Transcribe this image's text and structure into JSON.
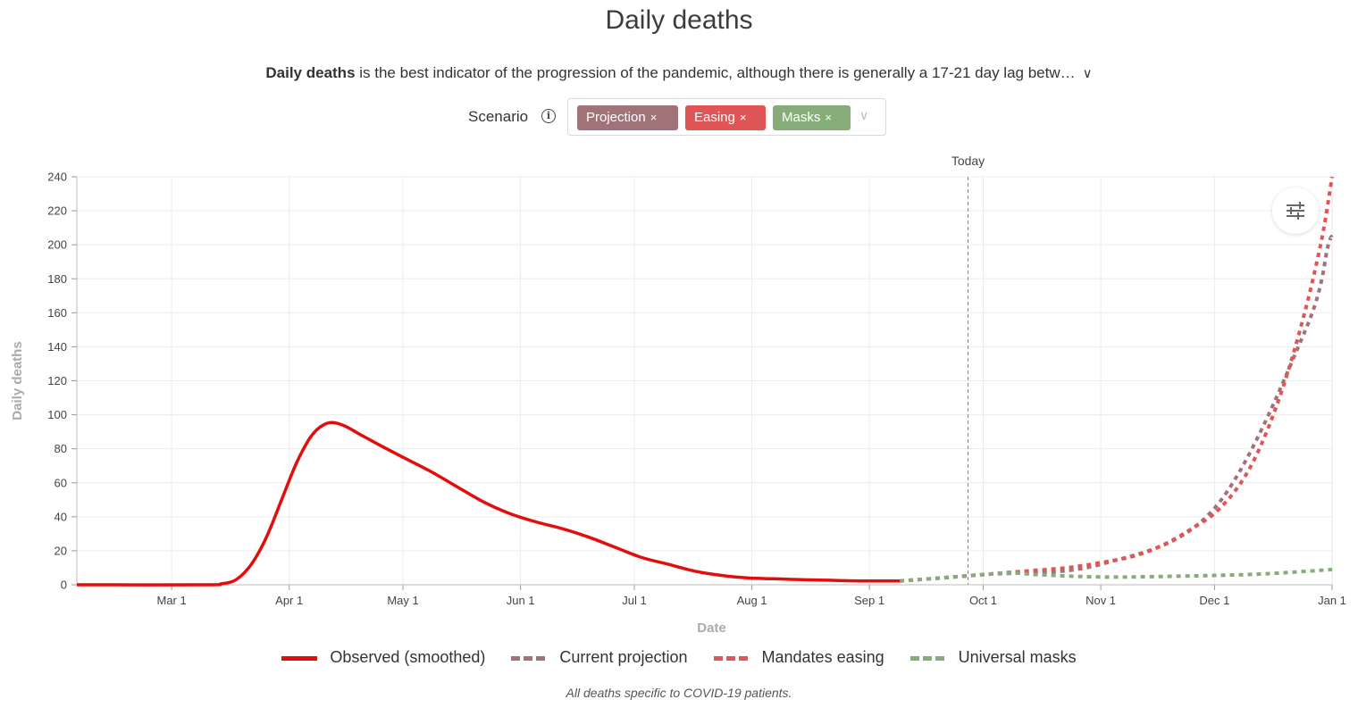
{
  "title": "Daily deaths",
  "description": {
    "bold": "Daily deaths",
    "rest": " is the best indicator of the progression of the pandemic, although there is generally a 17-21 day lag betw…",
    "expand_icon": "chevron-down-icon"
  },
  "scenario": {
    "label": "Scenario",
    "info_icon": "info-icon",
    "tags": [
      {
        "label": "Projection",
        "color": "#a07378"
      },
      {
        "label": "Easing",
        "color": "#e05555"
      },
      {
        "label": "Masks",
        "color": "#86ac79"
      }
    ],
    "remove_glyph": "×",
    "dropdown_icon": "chevron-down-icon"
  },
  "settings_icon": "sliders-icon",
  "legend": [
    {
      "label": "Observed (smoothed)",
      "style": "solid",
      "color": "#e30d0d"
    },
    {
      "label": "Current projection",
      "style": "dashed",
      "color": "#a07378"
    },
    {
      "label": "Mandates easing",
      "style": "dashed",
      "color": "#e05555"
    },
    {
      "label": "Universal masks",
      "style": "dashed",
      "color": "#86ac79"
    }
  ],
  "footnote": "All deaths specific to COVID-19 patients.",
  "chart_data": {
    "type": "line",
    "xlabel": "Date",
    "ylabel": "Daily deaths",
    "x_ticks": [
      "Mar 1",
      "Apr 1",
      "May 1",
      "Jun 1",
      "Jul 1",
      "Aug 1",
      "Sep 1",
      "Oct 1",
      "Nov 1",
      "Dec 1",
      "Jan 1"
    ],
    "x_tick_dates": [
      "2020-03-01",
      "2020-04-01",
      "2020-05-01",
      "2020-06-01",
      "2020-07-01",
      "2020-08-01",
      "2020-09-01",
      "2020-10-01",
      "2020-11-01",
      "2020-12-01",
      "2021-01-01"
    ],
    "xlim": [
      "2020-02-05",
      "2021-01-01"
    ],
    "ylim": [
      0,
      240
    ],
    "y_ticks": [
      0,
      20,
      40,
      60,
      80,
      100,
      120,
      140,
      160,
      180,
      200,
      220,
      240
    ],
    "grid": true,
    "today": {
      "label": "Today",
      "date": "2020-09-27"
    },
    "series": [
      {
        "name": "Observed (smoothed)",
        "style": "solid",
        "color": "#e30d0d",
        "points": [
          [
            "2020-02-05",
            0
          ],
          [
            "2020-03-10",
            0
          ],
          [
            "2020-03-14",
            0.5
          ],
          [
            "2020-03-18",
            3
          ],
          [
            "2020-03-22",
            12
          ],
          [
            "2020-03-26",
            28
          ],
          [
            "2020-03-30",
            50
          ],
          [
            "2020-04-03",
            72
          ],
          [
            "2020-04-07",
            88
          ],
          [
            "2020-04-11",
            95
          ],
          [
            "2020-04-15",
            94
          ],
          [
            "2020-04-20",
            88
          ],
          [
            "2020-04-25",
            82
          ],
          [
            "2020-05-01",
            75
          ],
          [
            "2020-05-08",
            67
          ],
          [
            "2020-05-15",
            58
          ],
          [
            "2020-05-22",
            49
          ],
          [
            "2020-05-29",
            42
          ],
          [
            "2020-06-05",
            37
          ],
          [
            "2020-06-12",
            33
          ],
          [
            "2020-06-19",
            28
          ],
          [
            "2020-06-26",
            22
          ],
          [
            "2020-07-03",
            16
          ],
          [
            "2020-07-10",
            12
          ],
          [
            "2020-07-17",
            8
          ],
          [
            "2020-07-24",
            5.5
          ],
          [
            "2020-07-31",
            4
          ],
          [
            "2020-08-07",
            3.5
          ],
          [
            "2020-08-14",
            3
          ],
          [
            "2020-08-21",
            2.7
          ],
          [
            "2020-08-28",
            2.3
          ],
          [
            "2020-09-04",
            2.2
          ],
          [
            "2020-09-09",
            2.2
          ]
        ]
      },
      {
        "name": "Current projection",
        "style": "dashed",
        "color": "#a07378",
        "points": [
          [
            "2020-09-09",
            2.2
          ],
          [
            "2020-10-01",
            6
          ],
          [
            "2020-11-01",
            12
          ],
          [
            "2020-12-01",
            45
          ],
          [
            "2020-12-25",
            150
          ],
          [
            "2020-12-31",
            200
          ],
          [
            "2021-01-01",
            203
          ]
        ]
      },
      {
        "name": "Mandates easing",
        "style": "dashed",
        "color": "#e05555",
        "points": [
          [
            "2020-09-09",
            2.2
          ],
          [
            "2020-09-20",
            4
          ],
          [
            "2020-10-01",
            6
          ],
          [
            "2020-10-12",
            8
          ],
          [
            "2020-10-23",
            10
          ],
          [
            "2020-11-01",
            13
          ],
          [
            "2020-11-10",
            17
          ],
          [
            "2020-11-18",
            24
          ],
          [
            "2020-11-25",
            33
          ],
          [
            "2020-12-01",
            42
          ],
          [
            "2020-12-07",
            57
          ],
          [
            "2020-12-12",
            76
          ],
          [
            "2020-12-17",
            103
          ],
          [
            "2020-12-21",
            130
          ],
          [
            "2020-12-25",
            162
          ],
          [
            "2020-12-28",
            190
          ],
          [
            "2020-12-30",
            212
          ],
          [
            "2021-01-01",
            240
          ]
        ]
      },
      {
        "name": "Universal masks",
        "style": "dashed",
        "color": "#86ac79",
        "points": [
          [
            "2020-09-09",
            2.2
          ],
          [
            "2020-09-20",
            4
          ],
          [
            "2020-10-01",
            6
          ],
          [
            "2020-10-08",
            7
          ],
          [
            "2020-10-15",
            6
          ],
          [
            "2020-10-25",
            5
          ],
          [
            "2020-11-05",
            4.5
          ],
          [
            "2020-11-20",
            5
          ],
          [
            "2020-12-01",
            5.5
          ],
          [
            "2020-12-15",
            6.5
          ],
          [
            "2021-01-01",
            9
          ]
        ]
      }
    ]
  }
}
